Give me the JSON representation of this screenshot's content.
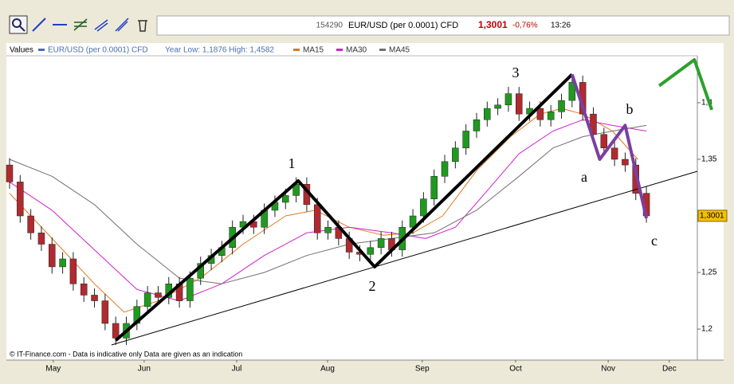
{
  "toolbar": {
    "code": "154290",
    "instrument": "EUR/USD (per 0.0001) CFD",
    "price": "1,3001",
    "change": "-0,76%",
    "time": "13:26"
  },
  "chart_data": {
    "type": "candlestick",
    "legend_title": "Values",
    "name": "EUR/USD (per 0.0001) CFD",
    "name_color": "#4a6fb0",
    "year_range": "Year Low: 1,1876 High: 1,4582",
    "x": [
      0,
      2.5,
      5,
      7.5,
      10,
      12.5,
      15,
      17.5,
      20,
      22.5,
      25,
      27.5,
      30,
      32.5,
      35,
      37.5,
      40,
      42.5,
      45,
      47.5,
      50,
      52.5,
      55,
      57.5,
      60,
      62.5,
      65,
      67.5,
      70,
      72.5,
      75,
      77.5,
      80,
      82.5,
      85,
      87.5,
      90,
      92.5,
      95,
      97.5,
      100,
      102.5,
      105,
      107.5,
      110,
      112.5,
      115,
      117.5,
      120,
      122.5,
      125,
      127.5,
      130,
      132.5,
      135,
      137.5,
      140,
      142.5,
      145,
      147.5,
      150
    ],
    "open": [
      1.345,
      1.33,
      1.3,
      1.285,
      1.275,
      1.255,
      1.262,
      1.24,
      1.23,
      1.225,
      1.205,
      1.192,
      1.205,
      1.22,
      1.232,
      1.228,
      1.24,
      1.225,
      1.245,
      1.258,
      1.265,
      1.272,
      1.29,
      1.295,
      1.29,
      1.305,
      1.312,
      1.318,
      1.328,
      1.31,
      1.285,
      1.29,
      1.28,
      1.268,
      1.266,
      1.272,
      1.28,
      1.27,
      1.29,
      1.3,
      1.315,
      1.335,
      1.348,
      1.36,
      1.375,
      1.385,
      1.395,
      1.398,
      1.408,
      1.39,
      1.395,
      1.385,
      1.392,
      1.402,
      1.418,
      1.39,
      1.372,
      1.36,
      1.35,
      1.345,
      1.32
    ],
    "high": [
      1.351,
      1.336,
      1.306,
      1.291,
      1.281,
      1.268,
      1.268,
      1.246,
      1.236,
      1.231,
      1.211,
      1.211,
      1.226,
      1.238,
      1.238,
      1.246,
      1.246,
      1.251,
      1.264,
      1.271,
      1.278,
      1.296,
      1.301,
      1.301,
      1.311,
      1.318,
      1.324,
      1.334,
      1.334,
      1.316,
      1.296,
      1.296,
      1.286,
      1.274,
      1.278,
      1.286,
      1.286,
      1.296,
      1.306,
      1.321,
      1.341,
      1.354,
      1.366,
      1.381,
      1.391,
      1.401,
      1.404,
      1.414,
      1.414,
      1.401,
      1.401,
      1.398,
      1.408,
      1.424,
      1.424,
      1.396,
      1.378,
      1.366,
      1.356,
      1.351,
      1.326
    ],
    "low": [
      1.324,
      1.294,
      1.279,
      1.269,
      1.249,
      1.249,
      1.234,
      1.224,
      1.219,
      1.199,
      1.186,
      1.186,
      1.199,
      1.214,
      1.222,
      1.222,
      1.219,
      1.219,
      1.239,
      1.252,
      1.259,
      1.266,
      1.284,
      1.284,
      1.284,
      1.299,
      1.306,
      1.312,
      1.304,
      1.279,
      1.279,
      1.274,
      1.262,
      1.26,
      1.26,
      1.266,
      1.264,
      1.264,
      1.284,
      1.294,
      1.309,
      1.329,
      1.342,
      1.354,
      1.369,
      1.379,
      1.389,
      1.392,
      1.384,
      1.384,
      1.379,
      1.379,
      1.386,
      1.396,
      1.384,
      1.366,
      1.354,
      1.344,
      1.339,
      1.314,
      1.294
    ],
    "close": [
      1.33,
      1.3,
      1.285,
      1.275,
      1.255,
      1.262,
      1.24,
      1.23,
      1.225,
      1.205,
      1.192,
      1.205,
      1.22,
      1.232,
      1.228,
      1.24,
      1.225,
      1.245,
      1.258,
      1.265,
      1.272,
      1.29,
      1.295,
      1.29,
      1.305,
      1.312,
      1.318,
      1.328,
      1.31,
      1.285,
      1.29,
      1.28,
      1.268,
      1.266,
      1.272,
      1.28,
      1.27,
      1.29,
      1.3,
      1.315,
      1.335,
      1.348,
      1.36,
      1.375,
      1.385,
      1.395,
      1.398,
      1.408,
      1.39,
      1.395,
      1.385,
      1.392,
      1.402,
      1.418,
      1.39,
      1.372,
      1.36,
      1.35,
      1.345,
      1.32,
      1.3
    ],
    "up_color": "#1f9a1f",
    "down_color": "#b02a30",
    "overlays": [
      {
        "name": "MA15",
        "color": "#e07820",
        "x": [
          0,
          10,
          20,
          27,
          35,
          45,
          55,
          65,
          72,
          80,
          88,
          95,
          102,
          110,
          118,
          125,
          130,
          135,
          142,
          148
        ],
        "values": [
          1.32,
          1.28,
          1.24,
          1.215,
          1.225,
          1.245,
          1.275,
          1.3,
          1.305,
          1.29,
          1.283,
          1.285,
          1.3,
          1.34,
          1.37,
          1.39,
          1.395,
          1.39,
          1.375,
          1.35
        ]
      },
      {
        "name": "MA30",
        "color": "#d020d0",
        "x": [
          0,
          10,
          20,
          30,
          40,
          50,
          60,
          70,
          80,
          90,
          98,
          105,
          112,
          120,
          128,
          135,
          142,
          150
        ],
        "values": [
          1.33,
          1.305,
          1.27,
          1.235,
          1.225,
          1.24,
          1.265,
          1.285,
          1.29,
          1.285,
          1.28,
          1.29,
          1.32,
          1.355,
          1.375,
          1.385,
          1.38,
          1.375
        ]
      },
      {
        "name": "MA45",
        "color": "#707070",
        "x": [
          0,
          10,
          20,
          30,
          40,
          50,
          60,
          70,
          80,
          90,
          100,
          110,
          120,
          128,
          135,
          142,
          150
        ],
        "values": [
          1.35,
          1.335,
          1.31,
          1.275,
          1.245,
          1.24,
          1.25,
          1.265,
          1.275,
          1.28,
          1.285,
          1.305,
          1.335,
          1.36,
          1.37,
          1.375,
          1.38
        ]
      }
    ],
    "xlim": [
      0,
      162
    ],
    "xticks": [
      {
        "value": 10.3,
        "label": "May"
      },
      {
        "value": 31.7,
        "label": "Jun"
      },
      {
        "value": 53.5,
        "label": "Jul"
      },
      {
        "value": 74.9,
        "label": "Aug"
      },
      {
        "value": 97.2,
        "label": "Sep"
      },
      {
        "value": 119.2,
        "label": "Oct"
      },
      {
        "value": 141,
        "label": "Nov"
      },
      {
        "value": 155.4,
        "label": "Dec"
      }
    ],
    "ylim": [
      1.174,
      1.4415
    ],
    "yticks": [
      {
        "value": 1.2,
        "label": "1,2"
      },
      {
        "value": 1.25,
        "label": "1,25"
      },
      {
        "value": 1.3,
        "label": "1,3"
      },
      {
        "value": 1.35,
        "label": "1,35"
      },
      {
        "value": 1.4,
        "label": "1,4"
      }
    ],
    "last_price": {
      "value": 1.3001,
      "label": "1,3001"
    },
    "annotation_lines": [
      {
        "color": "#000000",
        "x": [
          24,
          162
        ],
        "y": [
          1.186,
          1.3394
        ]
      },
      {
        "color": "#000000",
        "x": [
          25,
          68,
          86,
          132.5
        ],
        "y": [
          1.19,
          1.331,
          1.255,
          1.425
        ]
      },
      {
        "color": "#7a3fa0",
        "x": [
          132.5,
          139,
          145,
          150
        ],
        "y": [
          1.425,
          1.35,
          1.38,
          1.298
        ]
      },
      {
        "color": "#2ca02c",
        "x": [
          153,
          161.3,
          165.4
        ],
        "y": [
          1.415,
          1.438,
          1.3937
        ]
      }
    ],
    "wave_labels": [
      "1",
      "2",
      "3",
      "a",
      "b",
      "c"
    ],
    "footer": "© IT-Finance.com - Data is indicative only Data are given as an indication"
  }
}
